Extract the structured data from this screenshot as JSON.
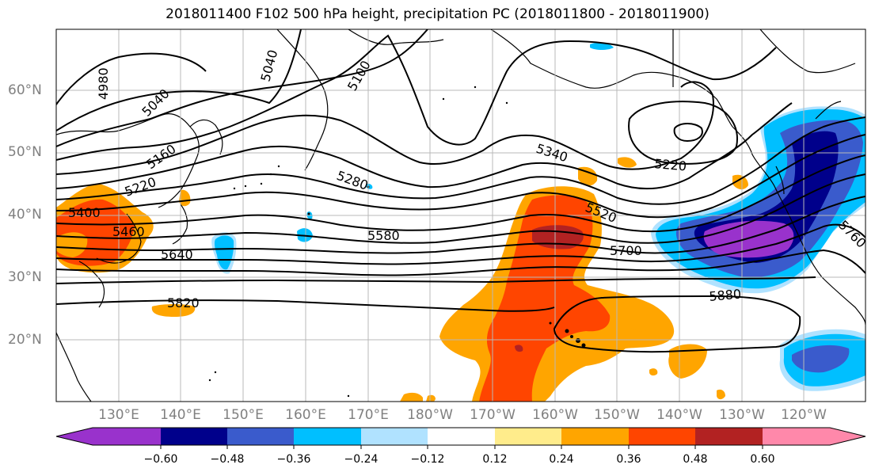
{
  "title": "2018011400 F102 500 hPa height, precipitation PC (2018011800 - 2018011900)",
  "latitude_labels": [
    "60°N",
    "50°N",
    "40°N",
    "30°N",
    "20°N"
  ],
  "longitude_labels": [
    "130°E",
    "140°E",
    "150°E",
    "160°E",
    "170°E",
    "180°W",
    "170°W",
    "160°W",
    "150°W",
    "140°W",
    "130°W",
    "120°W"
  ],
  "contour_labels": [
    "4980",
    "5040",
    "5040",
    "5100",
    "5160",
    "5220",
    "5280",
    "5340",
    "5220",
    "5400",
    "5460",
    "5520",
    "5580",
    "5640",
    "5700",
    "5760",
    "5820",
    "5880"
  ],
  "colorbar": {
    "tick_labels": [
      "−0.60",
      "−0.48",
      "−0.36",
      "−0.24",
      "−0.12",
      "0.12",
      "0.24",
      "0.36",
      "0.48",
      "0.60"
    ],
    "colors": [
      "#9932cc",
      "#00008b",
      "#3a5bcc",
      "#00bfff",
      "#b0e2ff",
      "#ffffff",
      "#ffec8b",
      "#ffa500",
      "#ff4500",
      "#b22222",
      "#ff88aa"
    ]
  }
}
